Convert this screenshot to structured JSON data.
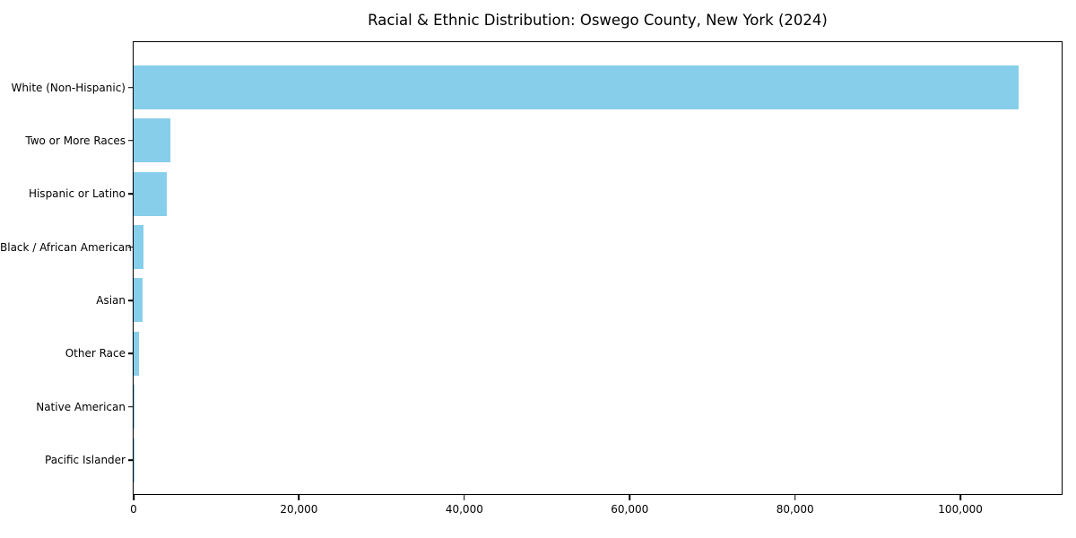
{
  "chart_data": {
    "type": "bar",
    "orientation": "horizontal",
    "title": "Racial & Ethnic Distribution: Oswego County, New York (2024)",
    "xlabel": "",
    "ylabel": "",
    "categories": [
      "White (Non-Hispanic)",
      "Two or More Races",
      "Hispanic or Latino",
      "Black / African American",
      "Asian",
      "Other Race",
      "Native American",
      "Pacific Islander"
    ],
    "values": [
      107000,
      4400,
      4000,
      1200,
      1050,
      600,
      100,
      25
    ],
    "bar_color": "#87CEEB",
    "xlim": [
      0,
      112350
    ],
    "xticks": [
      {
        "value": 0,
        "label": "0"
      },
      {
        "value": 20000,
        "label": "20,000"
      },
      {
        "value": 40000,
        "label": "40,000"
      },
      {
        "value": 60000,
        "label": "60,000"
      },
      {
        "value": 80000,
        "label": "80,000"
      },
      {
        "value": 100000,
        "label": "100,000"
      }
    ],
    "grid": false,
    "legend_position": "none",
    "text_color": "#000000",
    "frame_color": "#000000",
    "background_color": "#ffffff"
  }
}
